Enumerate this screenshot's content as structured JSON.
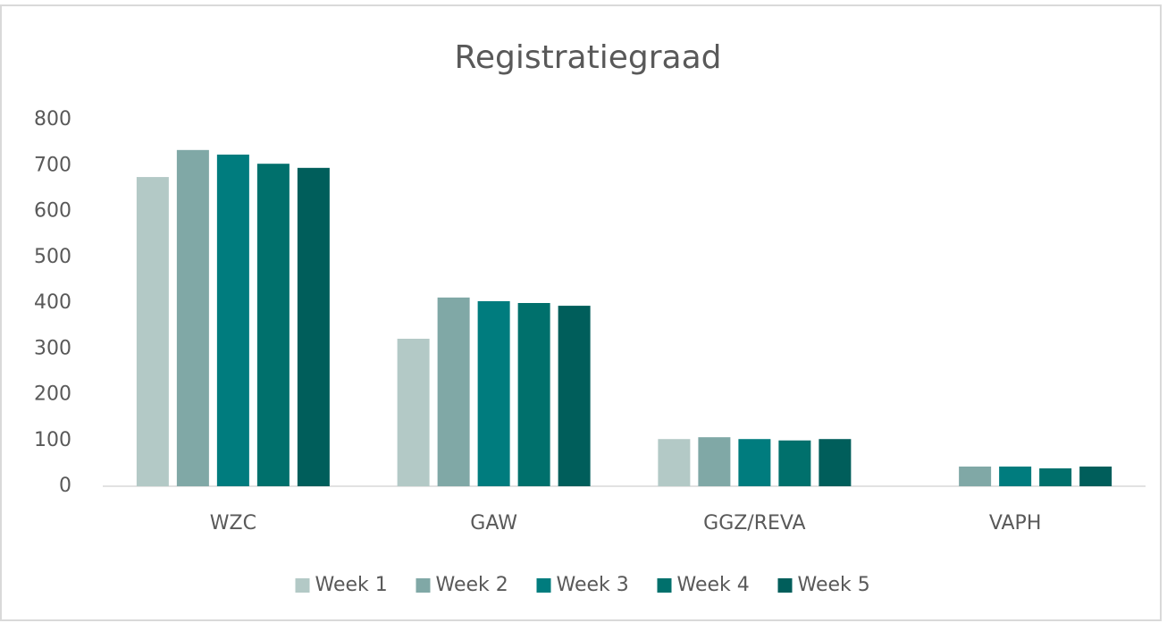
{
  "chart_data": {
    "type": "bar",
    "title": "Registratiegraad",
    "categories": [
      "WZC",
      "GAW",
      "GGZ/REVA",
      "VAPH"
    ],
    "series": [
      {
        "name": "Week 1",
        "color": "#b3c9c6",
        "values": [
          675,
          322,
          103,
          null
        ]
      },
      {
        "name": "Week 2",
        "color": "#80a8a6",
        "values": [
          734,
          412,
          107,
          43
        ]
      },
      {
        "name": "Week 3",
        "color": "#007c7e",
        "values": [
          724,
          404,
          103,
          43
        ]
      },
      {
        "name": "Week 4",
        "color": "#00706c",
        "values": [
          704,
          400,
          100,
          39
        ]
      },
      {
        "name": "Week 5",
        "color": "#005e5b",
        "values": [
          695,
          394,
          103,
          43
        ]
      }
    ],
    "ylim": [
      0,
      800
    ],
    "yticks": [
      0,
      100,
      200,
      300,
      400,
      500,
      600,
      700,
      800
    ],
    "grid": false,
    "legend": "bottom"
  }
}
